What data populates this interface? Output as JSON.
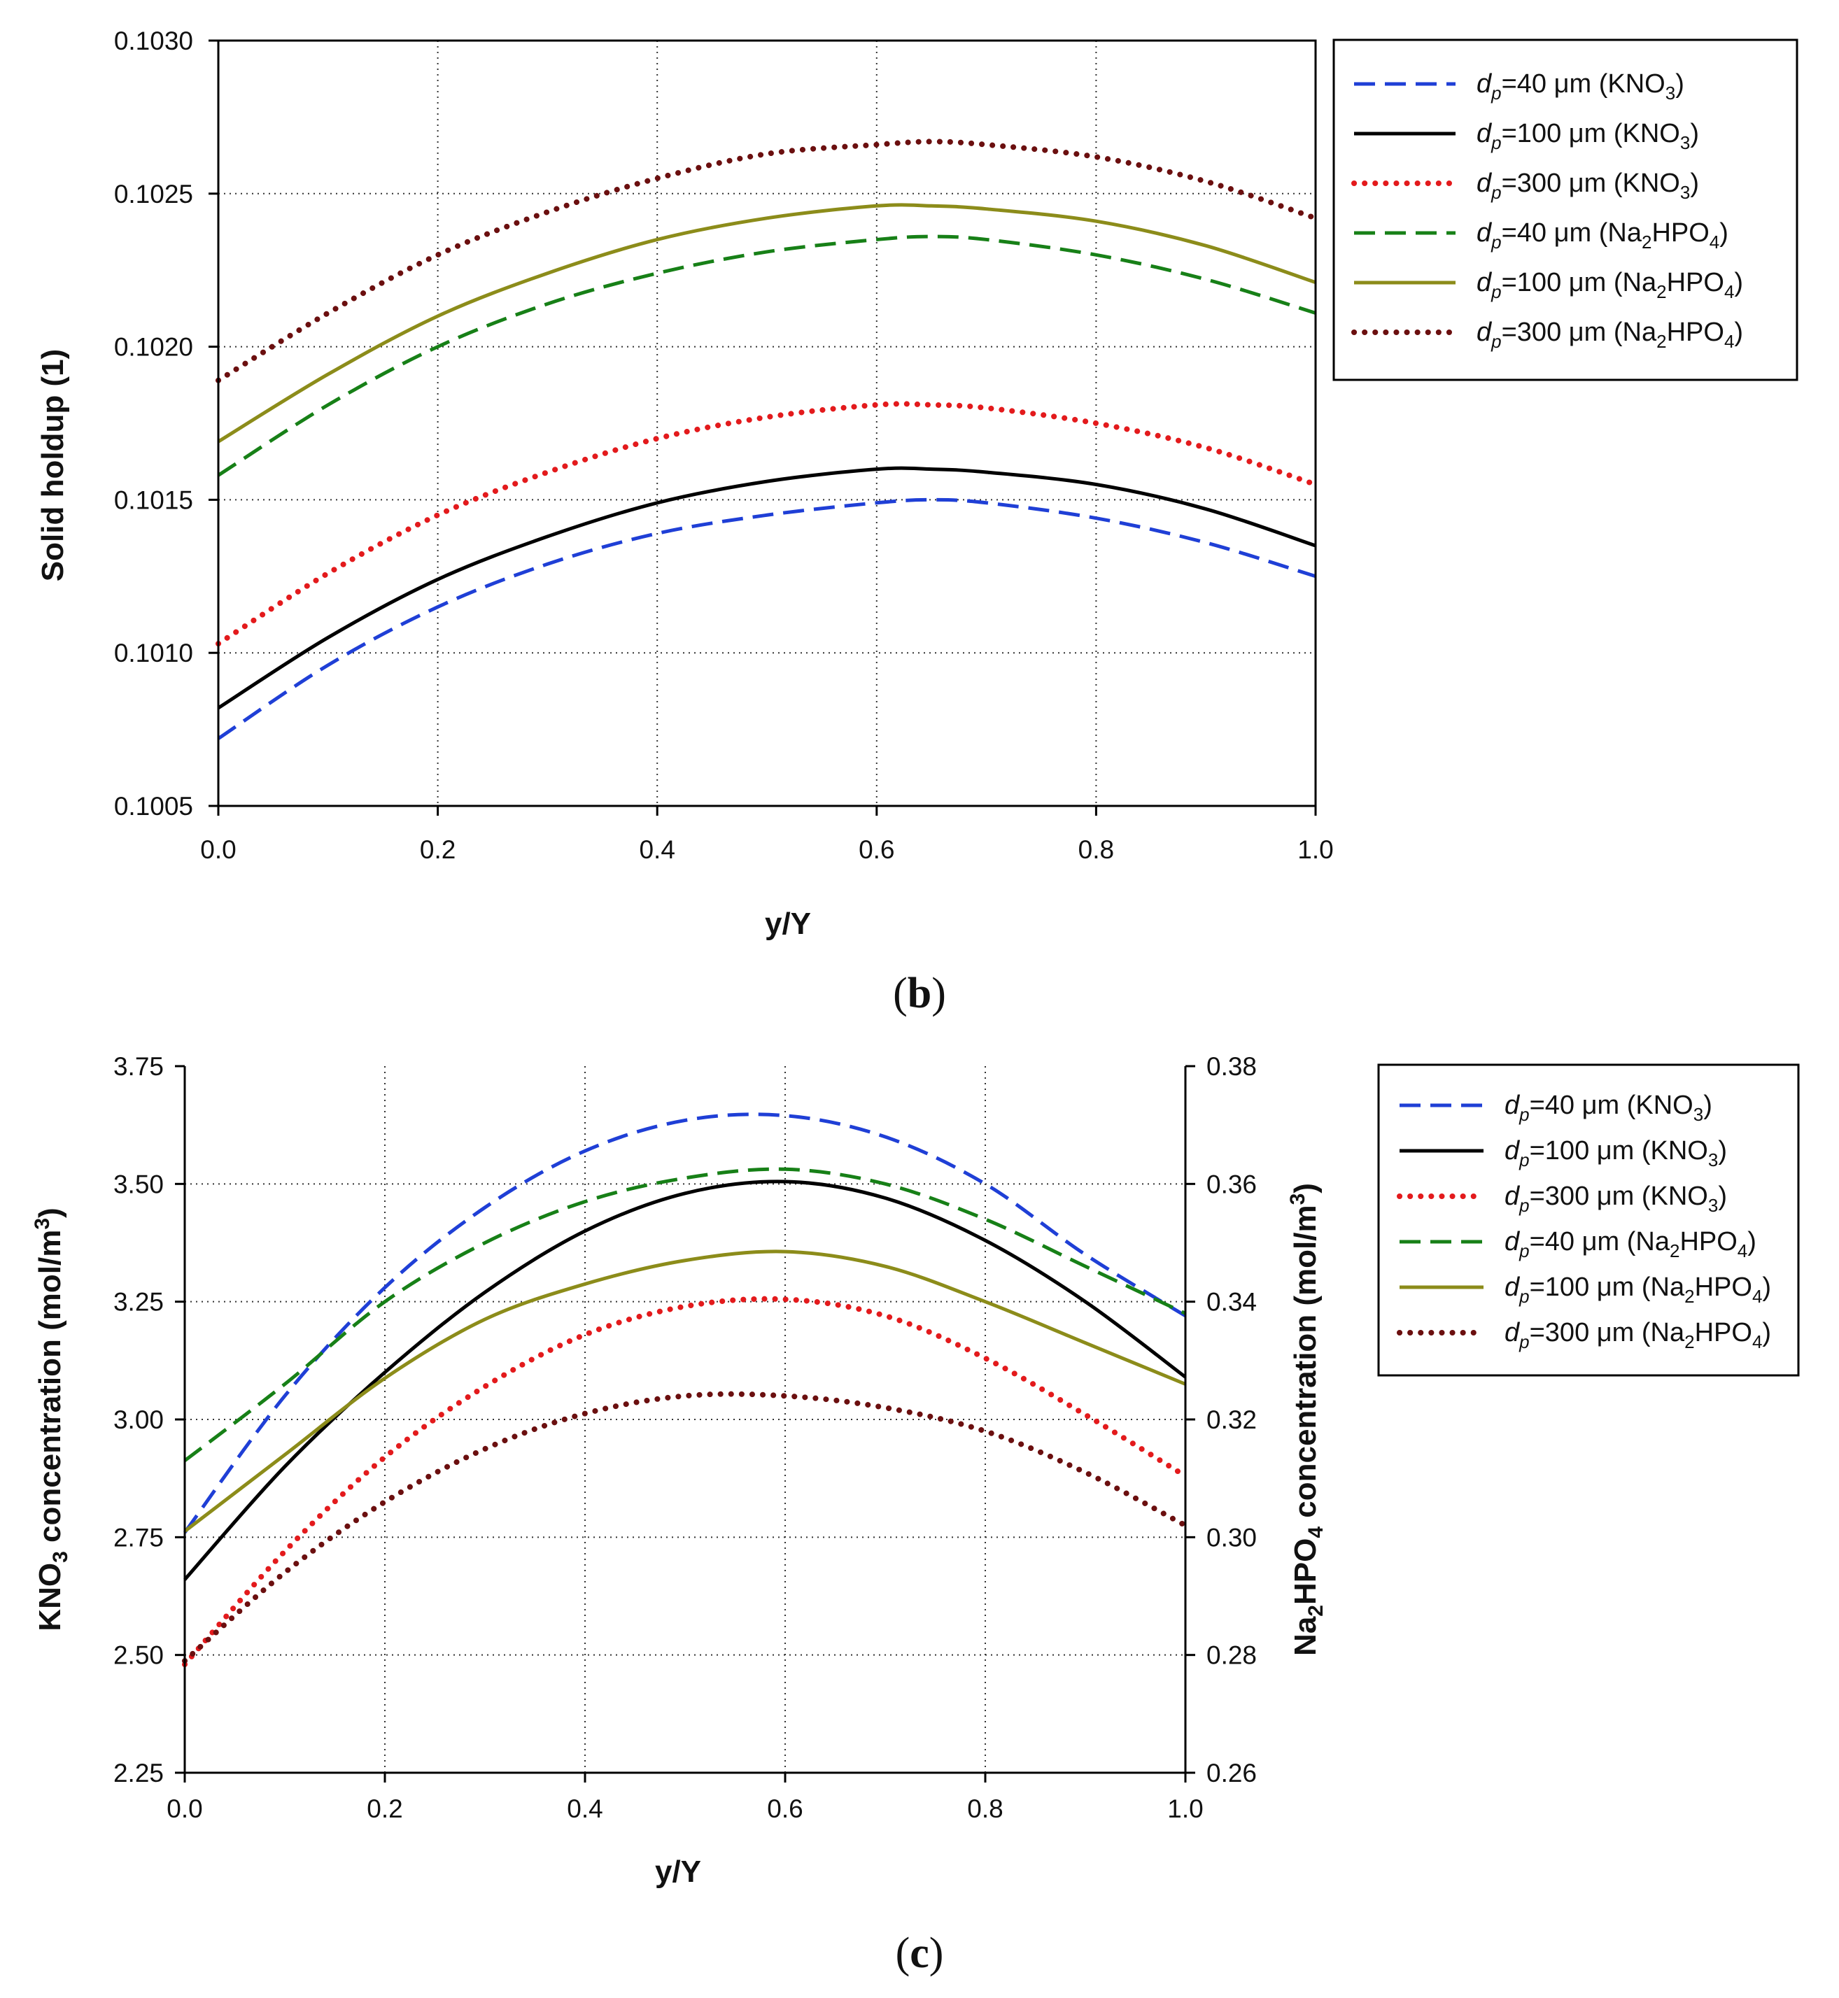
{
  "chart_data": [
    {
      "panel_label": "b",
      "type": "line",
      "xlabel": "y/Y",
      "ylabel": "Solid holdup (1)",
      "xlim": [
        0,
        1
      ],
      "ylim": [
        0.1005,
        0.103
      ],
      "xticks": [
        "0.0",
        "0.2",
        "0.4",
        "0.6",
        "0.8",
        "1.0"
      ],
      "yticks": [
        "0.1005",
        "0.1010",
        "0.1015",
        "0.1020",
        "0.1025",
        "0.1030"
      ],
      "grid": true,
      "legend_position": "right",
      "series": [
        {
          "name_pre": "d",
          "name_sub": "p",
          "name_mid": "=40 μm (KNO",
          "name_sub2": "3",
          "name_post": ")",
          "color": "#1f3fd6",
          "style": "dashed",
          "x": [
            0,
            0.1,
            0.2,
            0.3,
            0.4,
            0.5,
            0.6,
            0.65,
            0.7,
            0.8,
            0.9,
            1.0
          ],
          "values": [
            0.10072,
            0.10096,
            0.10115,
            0.10129,
            0.10139,
            0.10145,
            0.10149,
            0.1015,
            0.10149,
            0.10144,
            0.10136,
            0.10125
          ]
        },
        {
          "name_pre": "d",
          "name_sub": "p",
          "name_mid": "=100 μm (KNO",
          "name_sub2": "3",
          "name_post": ")",
          "color": "#000000",
          "style": "solid",
          "x": [
            0,
            0.1,
            0.2,
            0.3,
            0.4,
            0.5,
            0.6,
            0.65,
            0.7,
            0.8,
            0.9,
            1.0
          ],
          "values": [
            0.10082,
            0.10105,
            0.10124,
            0.10138,
            0.10149,
            0.10156,
            0.1016,
            0.1016,
            0.10159,
            0.10155,
            0.10147,
            0.10135
          ]
        },
        {
          "name_pre": "d",
          "name_sub": "p",
          "name_mid": "=300 μm (KNO",
          "name_sub2": "3",
          "name_post": ")",
          "color": "#e31a1c",
          "style": "dotted",
          "x": [
            0,
            0.1,
            0.2,
            0.3,
            0.4,
            0.5,
            0.6,
            0.65,
            0.7,
            0.8,
            0.9,
            1.0
          ],
          "values": [
            0.10103,
            0.10126,
            0.10145,
            0.10159,
            0.1017,
            0.10177,
            0.10181,
            0.10181,
            0.1018,
            0.10175,
            0.10167,
            0.10155
          ]
        },
        {
          "name_pre": "d",
          "name_sub": "p",
          "name_mid": "=40 μm (Na",
          "name_sub2": "2",
          "name_post": "HPO",
          "name_sub3": "4",
          "name_end": ")",
          "color": "#178017",
          "style": "dashed",
          "x": [
            0,
            0.1,
            0.2,
            0.3,
            0.4,
            0.5,
            0.6,
            0.65,
            0.7,
            0.8,
            0.9,
            1.0
          ],
          "values": [
            0.10158,
            0.10181,
            0.102,
            0.10214,
            0.10224,
            0.10231,
            0.10235,
            0.10236,
            0.10235,
            0.1023,
            0.10222,
            0.10211
          ]
        },
        {
          "name_pre": "d",
          "name_sub": "p",
          "name_mid": "=100 μm (Na",
          "name_sub2": "2",
          "name_post": "HPO",
          "name_sub3": "4",
          "name_end": ")",
          "color": "#8c8c1a",
          "style": "solid",
          "x": [
            0,
            0.1,
            0.2,
            0.3,
            0.4,
            0.5,
            0.6,
            0.65,
            0.7,
            0.8,
            0.9,
            1.0
          ],
          "values": [
            0.10169,
            0.10191,
            0.1021,
            0.10224,
            0.10235,
            0.10242,
            0.10246,
            0.10246,
            0.10245,
            0.10241,
            0.10233,
            0.10221
          ]
        },
        {
          "name_pre": "d",
          "name_sub": "p",
          "name_mid": "=300 μm (Na",
          "name_sub2": "2",
          "name_post": "HPO",
          "name_sub3": "4",
          "name_end": ")",
          "color": "#6b0f0f",
          "style": "dotted",
          "x": [
            0,
            0.1,
            0.2,
            0.3,
            0.4,
            0.5,
            0.6,
            0.65,
            0.7,
            0.8,
            0.9,
            1.0
          ],
          "values": [
            0.10189,
            0.10211,
            0.1023,
            0.10244,
            0.10255,
            0.10263,
            0.10266,
            0.10267,
            0.10266,
            0.10262,
            0.10254,
            0.10242
          ]
        }
      ]
    },
    {
      "panel_label": "c",
      "type": "line",
      "xlabel": "y/Y",
      "ylabel_left_pre": "KNO",
      "ylabel_left_sub": "3",
      "ylabel_left_post": " concentration (mol/m",
      "ylabel_left_sup": "3",
      "ylabel_left_end": ")",
      "ylabel_right_pre": "Na",
      "ylabel_right_sub": "2",
      "ylabel_right_mid": "HPO",
      "ylabel_right_sub2": "4",
      "ylabel_right_post": " concentration (mol/m",
      "ylabel_right_sup": "3",
      "ylabel_right_end": ")",
      "xlim": [
        0,
        1
      ],
      "ylim_left": [
        2.25,
        3.75
      ],
      "ylim_right": [
        0.26,
        0.38
      ],
      "xticks": [
        "0.0",
        "0.2",
        "0.4",
        "0.6",
        "0.8",
        "1.0"
      ],
      "yticks_left": [
        "2.25",
        "2.50",
        "2.75",
        "3.00",
        "3.25",
        "3.50",
        "3.75"
      ],
      "yticks_right": [
        "0.26",
        "0.28",
        "0.30",
        "0.32",
        "0.34",
        "0.36",
        "0.38"
      ],
      "grid": true,
      "legend_position": "right",
      "series": [
        {
          "name_pre": "d",
          "name_sub": "p",
          "name_mid": "=40 μm (KNO",
          "name_sub2": "3",
          "name_post": ")",
          "color": "#1f3fd6",
          "style": "dashed",
          "axis": "left",
          "x": [
            0,
            0.1,
            0.2,
            0.3,
            0.4,
            0.5,
            0.6,
            0.7,
            0.8,
            0.9,
            1.0
          ],
          "values": [
            2.76,
            3.05,
            3.28,
            3.45,
            3.57,
            3.635,
            3.645,
            3.6,
            3.5,
            3.35,
            3.22
          ]
        },
        {
          "name_pre": "d",
          "name_sub": "p",
          "name_mid": "=100 μm (KNO",
          "name_sub2": "3",
          "name_post": ")",
          "color": "#000000",
          "style": "solid",
          "axis": "left",
          "x": [
            0,
            0.1,
            0.2,
            0.3,
            0.4,
            0.5,
            0.6,
            0.7,
            0.8,
            0.9,
            1.0
          ],
          "values": [
            2.66,
            2.9,
            3.1,
            3.27,
            3.4,
            3.48,
            3.505,
            3.47,
            3.38,
            3.25,
            3.09
          ]
        },
        {
          "name_pre": "d",
          "name_sub": "p",
          "name_mid": "=300 μm (KNO",
          "name_sub2": "3",
          "name_post": ")",
          "color": "#e31a1c",
          "style": "dotted",
          "axis": "left",
          "x": [
            0,
            0.1,
            0.2,
            0.3,
            0.4,
            0.5,
            0.6,
            0.7,
            0.8,
            0.9,
            1.0
          ],
          "values": [
            2.48,
            2.72,
            2.92,
            3.07,
            3.18,
            3.24,
            3.255,
            3.22,
            3.13,
            3.01,
            2.88
          ]
        },
        {
          "name_pre": "d",
          "name_sub": "p",
          "name_mid": "=40 μm (Na",
          "name_sub2": "2",
          "name_post": "HPO",
          "name_sub3": "4",
          "name_end": ")",
          "color": "#178017",
          "style": "dashed",
          "axis": "right",
          "x": [
            0,
            0.1,
            0.2,
            0.3,
            0.4,
            0.5,
            0.6,
            0.7,
            0.8,
            0.9,
            1.0
          ],
          "values": [
            0.313,
            0.326,
            0.34,
            0.35,
            0.357,
            0.361,
            0.3625,
            0.36,
            0.354,
            0.346,
            0.338
          ]
        },
        {
          "name_pre": "d",
          "name_sub": "p",
          "name_mid": "=100 μm (Na",
          "name_sub2": "2",
          "name_post": "HPO",
          "name_sub3": "4",
          "name_end": ")",
          "color": "#8c8c1a",
          "style": "solid",
          "axis": "right",
          "x": [
            0,
            0.1,
            0.2,
            0.3,
            0.4,
            0.5,
            0.6,
            0.7,
            0.8,
            0.9,
            1.0
          ],
          "values": [
            0.301,
            0.314,
            0.327,
            0.337,
            0.343,
            0.347,
            0.3485,
            0.346,
            0.34,
            0.333,
            0.326
          ]
        },
        {
          "name_pre": "d",
          "name_sub": "p",
          "name_mid": "=300 μm (Na",
          "name_sub2": "2",
          "name_post": "HPO",
          "name_sub3": "4",
          "name_end": ")",
          "color": "#6b0f0f",
          "style": "dotted",
          "axis": "right",
          "x": [
            0,
            0.1,
            0.2,
            0.3,
            0.4,
            0.5,
            0.6,
            0.7,
            0.8,
            0.9,
            1.0
          ],
          "values": [
            0.279,
            0.294,
            0.306,
            0.315,
            0.321,
            0.324,
            0.324,
            0.322,
            0.318,
            0.311,
            0.302
          ]
        }
      ]
    }
  ]
}
